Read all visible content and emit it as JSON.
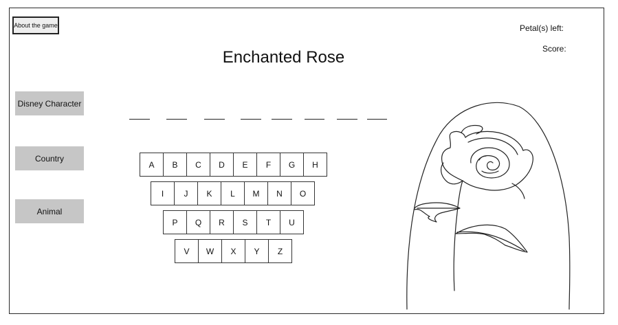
{
  "about_button": "About the game",
  "stats": {
    "petals_label": "Petal(s) left:",
    "score_label": "Score:"
  },
  "title": "Enchanted Rose",
  "categories": [
    "Disney Character",
    "Country",
    "Animal"
  ],
  "word_blanks": 8,
  "keyboard": {
    "rows": [
      [
        "A",
        "B",
        "C",
        "D",
        "E",
        "F",
        "G",
        "H"
      ],
      [
        "I",
        "J",
        "K",
        "L",
        "M",
        "N",
        "O"
      ],
      [
        "P",
        "Q",
        "R",
        "S",
        "T",
        "U"
      ],
      [
        "V",
        "W",
        "X",
        "Y",
        "Z"
      ]
    ]
  },
  "colors": {
    "button_bg": "#c6c6c6",
    "about_bg": "#eeeeee",
    "stroke": "#222222"
  }
}
